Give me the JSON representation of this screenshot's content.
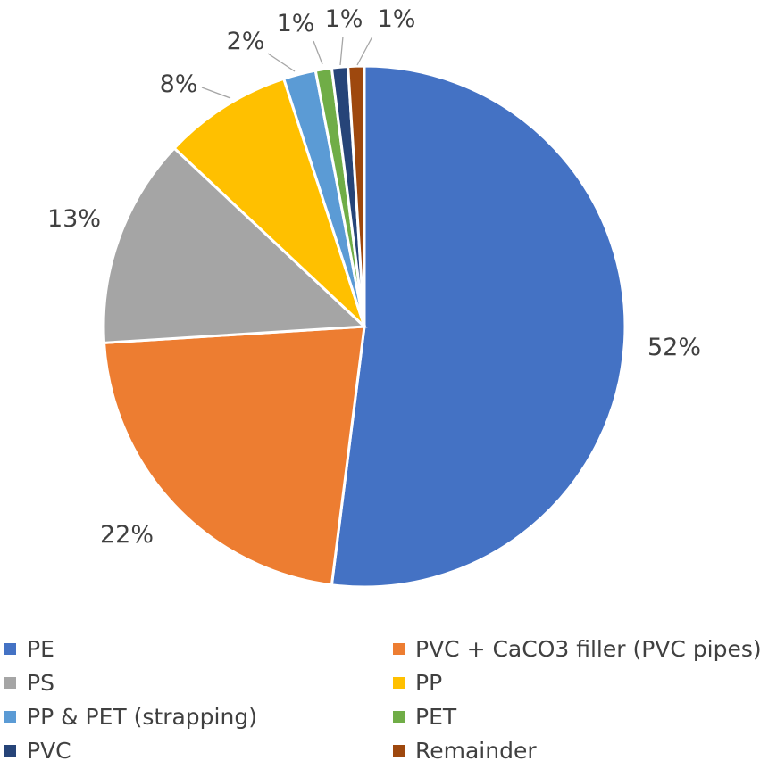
{
  "chart_data": {
    "type": "pie",
    "title": "",
    "slices": [
      {
        "name": "PE",
        "value": 52,
        "label": "52%",
        "color": "#4472c4"
      },
      {
        "name": "PVC + CaCO3 filler (PVC pipes)",
        "value": 22,
        "label": "22%",
        "color": "#ed7d31"
      },
      {
        "name": "PS",
        "value": 13,
        "label": "13%",
        "color": "#a5a5a5"
      },
      {
        "name": "PP",
        "value": 8,
        "label": "8%",
        "color": "#ffc000"
      },
      {
        "name": "PP & PET (strapping)",
        "value": 2,
        "label": "2%",
        "color": "#5b9bd5"
      },
      {
        "name": "PET",
        "value": 1,
        "label": "1%",
        "color": "#70ad47"
      },
      {
        "name": "PVC",
        "value": 1,
        "label": "1%",
        "color": "#264478"
      },
      {
        "name": "Remainder",
        "value": 1,
        "label": "1%",
        "color": "#9e480e"
      }
    ],
    "legend_position": "bottom"
  }
}
